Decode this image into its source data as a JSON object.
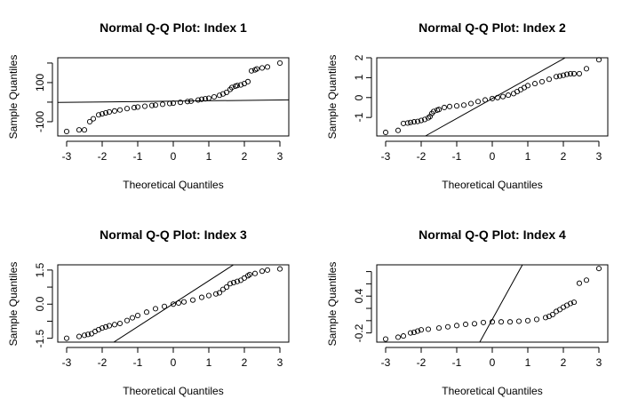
{
  "chart_data": [
    {
      "type": "scatter",
      "title": "Normal Q-Q Plot: Index 1",
      "xlabel": "Theoretical Quantiles",
      "ylabel": "Sample Quantiles",
      "xlim": [
        -3.25,
        3.25
      ],
      "ylim": [
        -173,
        227
      ],
      "xticks": [
        -3,
        -2,
        -1,
        0,
        1,
        2,
        3
      ],
      "yticks": [
        -100,
        0,
        100,
        200
      ],
      "yticklabels": [
        "-100",
        "",
        "100",
        ""
      ],
      "qqline": {
        "intercept": 5,
        "slope": 2
      },
      "points": [
        [
          -3,
          -150
        ],
        [
          -2.65,
          -142
        ],
        [
          -2.5,
          -142
        ],
        [
          -2.35,
          -100
        ],
        [
          -2.25,
          -85
        ],
        [
          -2.1,
          -65
        ],
        [
          -2,
          -60
        ],
        [
          -1.9,
          -55
        ],
        [
          -1.8,
          -50
        ],
        [
          -1.65,
          -45
        ],
        [
          -1.5,
          -40
        ],
        [
          -1.3,
          -33
        ],
        [
          -1.1,
          -28
        ],
        [
          -1,
          -25
        ],
        [
          -0.8,
          -21
        ],
        [
          -0.6,
          -17
        ],
        [
          -0.5,
          -15
        ],
        [
          -0.3,
          -11
        ],
        [
          -0.1,
          -7
        ],
        [
          0,
          -5
        ],
        [
          0.2,
          -1
        ],
        [
          0.4,
          3
        ],
        [
          0.5,
          5
        ],
        [
          0.7,
          11
        ],
        [
          0.8,
          15
        ],
        [
          0.9,
          17
        ],
        [
          1,
          20
        ],
        [
          1.15,
          27
        ],
        [
          1.3,
          35
        ],
        [
          1.4,
          42
        ],
        [
          1.5,
          50
        ],
        [
          1.6,
          65
        ],
        [
          1.65,
          75
        ],
        [
          1.75,
          82
        ],
        [
          1.8,
          85
        ],
        [
          1.9,
          88
        ],
        [
          2,
          95
        ],
        [
          2.1,
          105
        ],
        [
          2.2,
          160
        ],
        [
          2.3,
          165
        ],
        [
          2.35,
          170
        ],
        [
          2.5,
          175
        ],
        [
          2.65,
          180
        ],
        [
          3,
          200
        ]
      ]
    },
    {
      "type": "scatter",
      "title": "Normal Q-Q Plot: Index 2",
      "xlabel": "Theoretical Quantiles",
      "ylabel": "Sample Quantiles",
      "xlim": [
        -3.25,
        3.25
      ],
      "ylim": [
        -1.93,
        2.0
      ],
      "xticks": [
        -3,
        -2,
        -1,
        0,
        1,
        2,
        3
      ],
      "yticks": [
        -1,
        0,
        1,
        2
      ],
      "yticklabels": [
        "-1",
        "0",
        "1",
        "2"
      ],
      "qqline": {
        "intercept": -0.05,
        "slope": 1.0
      },
      "points": [
        [
          -3,
          -1.75
        ],
        [
          -2.65,
          -1.65
        ],
        [
          -2.5,
          -1.3
        ],
        [
          -2.38,
          -1.28
        ],
        [
          -2.3,
          -1.25
        ],
        [
          -2.2,
          -1.22
        ],
        [
          -2.1,
          -1.2
        ],
        [
          -2,
          -1.15
        ],
        [
          -1.9,
          -1.1
        ],
        [
          -1.8,
          -1.02
        ],
        [
          -1.75,
          -0.95
        ],
        [
          -1.7,
          -0.8
        ],
        [
          -1.65,
          -0.7
        ],
        [
          -1.55,
          -0.63
        ],
        [
          -1.5,
          -0.6
        ],
        [
          -1.35,
          -0.5
        ],
        [
          -1.2,
          -0.45
        ],
        [
          -1,
          -0.42
        ],
        [
          -0.8,
          -0.38
        ],
        [
          -0.6,
          -0.3
        ],
        [
          -0.4,
          -0.2
        ],
        [
          -0.2,
          -0.12
        ],
        [
          0,
          -0.05
        ],
        [
          0.15,
          0
        ],
        [
          0.3,
          0.05
        ],
        [
          0.45,
          0.12
        ],
        [
          0.6,
          0.2
        ],
        [
          0.7,
          0.3
        ],
        [
          0.8,
          0.4
        ],
        [
          0.9,
          0.5
        ],
        [
          1,
          0.6
        ],
        [
          1.2,
          0.7
        ],
        [
          1.4,
          0.8
        ],
        [
          1.6,
          0.92
        ],
        [
          1.8,
          1.05
        ],
        [
          1.9,
          1.08
        ],
        [
          2,
          1.12
        ],
        [
          2.1,
          1.17
        ],
        [
          2.2,
          1.2
        ],
        [
          2.3,
          1.2
        ],
        [
          2.45,
          1.2
        ],
        [
          2.65,
          1.45
        ],
        [
          3,
          1.9
        ]
      ]
    },
    {
      "type": "scatter",
      "title": "Normal Q-Q Plot: Index 3",
      "xlabel": "Theoretical Quantiles",
      "ylabel": "Sample Quantiles",
      "xlim": [
        -3.25,
        3.25
      ],
      "ylim": [
        -1.67,
        1.73
      ],
      "xticks": [
        -3,
        -2,
        -1,
        0,
        1,
        2,
        3
      ],
      "yticks": [
        -1.5,
        -0.75,
        0,
        0.75,
        1.5
      ],
      "yticklabels": [
        "-1.5",
        "",
        "0.0",
        "",
        "1.5"
      ],
      "qqline": {
        "intercept": 0.02,
        "slope": 1.01
      },
      "points": [
        [
          -3,
          -1.5
        ],
        [
          -2.65,
          -1.42
        ],
        [
          -2.5,
          -1.37
        ],
        [
          -2.4,
          -1.33
        ],
        [
          -2.3,
          -1.3
        ],
        [
          -2.2,
          -1.2
        ],
        [
          -2.1,
          -1.12
        ],
        [
          -2,
          -1.05
        ],
        [
          -1.9,
          -1.0
        ],
        [
          -1.8,
          -0.95
        ],
        [
          -1.65,
          -0.9
        ],
        [
          -1.5,
          -0.85
        ],
        [
          -1.3,
          -0.72
        ],
        [
          -1.15,
          -0.6
        ],
        [
          -1,
          -0.5
        ],
        [
          -0.75,
          -0.35
        ],
        [
          -0.5,
          -0.2
        ],
        [
          -0.25,
          -0.1
        ],
        [
          0,
          0
        ],
        [
          0.15,
          0.05
        ],
        [
          0.3,
          0.1
        ],
        [
          0.55,
          0.18
        ],
        [
          0.8,
          0.3
        ],
        [
          1,
          0.38
        ],
        [
          1.2,
          0.45
        ],
        [
          1.3,
          0.5
        ],
        [
          1.4,
          0.65
        ],
        [
          1.5,
          0.75
        ],
        [
          1.6,
          0.9
        ],
        [
          1.7,
          0.95
        ],
        [
          1.8,
          1.0
        ],
        [
          1.9,
          1.05
        ],
        [
          2,
          1.15
        ],
        [
          2.1,
          1.25
        ],
        [
          2.15,
          1.3
        ],
        [
          2.3,
          1.35
        ],
        [
          2.5,
          1.45
        ],
        [
          2.65,
          1.5
        ],
        [
          3,
          1.55
        ]
      ]
    },
    {
      "type": "scatter",
      "title": "Normal Q-Q Plot: Index 4",
      "xlabel": "Theoretical Quantiles",
      "ylabel": "Sample Quantiles",
      "xlim": [
        -3.25,
        3.25
      ],
      "ylim": [
        -0.35,
        0.91
      ],
      "xticks": [
        -3,
        -2,
        -1,
        0,
        1,
        2,
        3
      ],
      "yticks": [
        -0.2,
        0,
        0.2,
        0.4,
        0.6,
        0.8
      ],
      "yticklabels": [
        "-0.2",
        "",
        "",
        "0.4",
        "",
        ""
      ],
      "qqline": {
        "intercept": 0.02,
        "slope": 1.05
      },
      "points": [
        [
          -3,
          -0.3
        ],
        [
          -2.65,
          -0.27
        ],
        [
          -2.5,
          -0.25
        ],
        [
          -2.3,
          -0.2
        ],
        [
          -2.2,
          -0.19
        ],
        [
          -2.1,
          -0.17
        ],
        [
          -2,
          -0.15
        ],
        [
          -1.8,
          -0.14
        ],
        [
          -1.5,
          -0.12
        ],
        [
          -1.25,
          -0.1
        ],
        [
          -1,
          -0.08
        ],
        [
          -0.75,
          -0.06
        ],
        [
          -0.5,
          -0.05
        ],
        [
          -0.25,
          -0.03
        ],
        [
          0,
          -0.02
        ],
        [
          0.25,
          -0.02
        ],
        [
          0.5,
          -0.02
        ],
        [
          0.75,
          -0.01
        ],
        [
          1,
          0.0
        ],
        [
          1.25,
          0.02
        ],
        [
          1.5,
          0.05
        ],
        [
          1.6,
          0.07
        ],
        [
          1.7,
          0.1
        ],
        [
          1.8,
          0.15
        ],
        [
          1.9,
          0.18
        ],
        [
          2,
          0.22
        ],
        [
          2.1,
          0.25
        ],
        [
          2.2,
          0.28
        ],
        [
          2.3,
          0.3
        ],
        [
          2.45,
          0.61
        ],
        [
          2.65,
          0.66
        ],
        [
          3,
          0.85
        ]
      ]
    }
  ]
}
